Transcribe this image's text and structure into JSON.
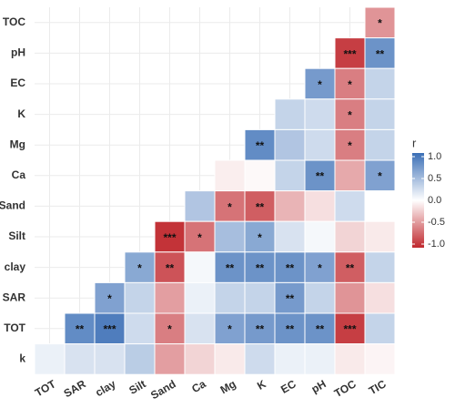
{
  "chart_data": {
    "type": "heatmap",
    "x": [
      "TOT",
      "SAR",
      "clay",
      "Silt",
      "Sand",
      "Ca",
      "Mg",
      "K",
      "EC",
      "pH",
      "TOC",
      "TIC"
    ],
    "y": [
      "TOC",
      "pH",
      "EC",
      "K",
      "Mg",
      "Ca",
      "Sand",
      "Silt",
      "clay",
      "SAR",
      "TOT",
      "k"
    ],
    "values": [
      [
        null,
        null,
        null,
        null,
        null,
        null,
        null,
        null,
        null,
        null,
        null,
        -0.5
      ],
      [
        null,
        null,
        null,
        null,
        null,
        null,
        null,
        null,
        null,
        null,
        -0.9,
        0.75
      ],
      [
        null,
        null,
        null,
        null,
        null,
        null,
        null,
        null,
        null,
        0.7,
        -0.6,
        0.3
      ],
      [
        null,
        null,
        null,
        null,
        null,
        null,
        null,
        null,
        0.3,
        0.25,
        -0.6,
        0.3
      ],
      [
        null,
        null,
        null,
        null,
        null,
        null,
        null,
        0.8,
        0.4,
        0.25,
        -0.6,
        0.3
      ],
      [
        null,
        null,
        null,
        null,
        null,
        null,
        -0.08,
        -0.03,
        0.3,
        0.75,
        -0.4,
        0.65
      ],
      [
        null,
        null,
        null,
        null,
        null,
        0.4,
        -0.65,
        -0.75,
        -0.35,
        -0.15,
        0.25,
        0.0
      ],
      [
        null,
        null,
        null,
        null,
        -0.95,
        -0.65,
        0.45,
        0.6,
        0.2,
        0.05,
        -0.2,
        -0.1
      ],
      [
        null,
        null,
        null,
        0.6,
        -0.8,
        0.05,
        0.75,
        0.75,
        0.75,
        0.65,
        -0.75,
        0.3
      ],
      [
        null,
        null,
        0.65,
        0.3,
        -0.45,
        0.1,
        0.3,
        0.3,
        0.7,
        0.3,
        -0.5,
        -0.15
      ],
      [
        null,
        0.8,
        0.9,
        0.25,
        -0.6,
        0.2,
        0.65,
        0.7,
        0.75,
        0.75,
        -0.9,
        0.3
      ],
      [
        0.1,
        0.2,
        0.2,
        0.35,
        -0.45,
        -0.2,
        -0.1,
        0.25,
        0.1,
        0.1,
        -0.1,
        -0.05
      ]
    ],
    "value_labels": [
      [
        null,
        null,
        null,
        null,
        null,
        null,
        null,
        null,
        null,
        null,
        null,
        "*"
      ],
      [
        null,
        null,
        null,
        null,
        null,
        null,
        null,
        null,
        null,
        null,
        "***",
        "**"
      ],
      [
        null,
        null,
        null,
        null,
        null,
        null,
        null,
        null,
        null,
        "*",
        "*",
        null
      ],
      [
        null,
        null,
        null,
        null,
        null,
        null,
        null,
        null,
        null,
        null,
        "*",
        null
      ],
      [
        null,
        null,
        null,
        null,
        null,
        null,
        null,
        "**",
        null,
        null,
        "*",
        null
      ],
      [
        null,
        null,
        null,
        null,
        null,
        null,
        null,
        null,
        null,
        "**",
        null,
        "*"
      ],
      [
        null,
        null,
        null,
        null,
        null,
        null,
        "*",
        "**",
        null,
        null,
        null,
        null
      ],
      [
        null,
        null,
        null,
        null,
        "***",
        "*",
        null,
        "*",
        null,
        null,
        null,
        null
      ],
      [
        null,
        null,
        null,
        "*",
        "**",
        null,
        "**",
        "**",
        "**",
        "*",
        "**",
        null
      ],
      [
        null,
        null,
        "*",
        null,
        null,
        null,
        null,
        null,
        "**",
        null,
        null,
        null
      ],
      [
        null,
        "**",
        "***",
        null,
        "*",
        null,
        "*",
        "**",
        "**",
        "**",
        "***",
        null
      ],
      [
        null,
        null,
        null,
        null,
        null,
        null,
        null,
        null,
        null,
        null,
        null,
        null
      ]
    ],
    "legend_title": "r",
    "clim": [
      -1,
      1
    ],
    "cticks": [
      {
        "value": 1,
        "label": "1.0"
      },
      0.5,
      {
        "value": 0,
        "label": "0.0"
      },
      -0.5,
      {
        "value": -1,
        "label": "-1.0"
      }
    ],
    "low_color": "#c0282e",
    "mid_color": "#ffffff",
    "high_color": "#3b6fb6",
    "grid": true
  }
}
